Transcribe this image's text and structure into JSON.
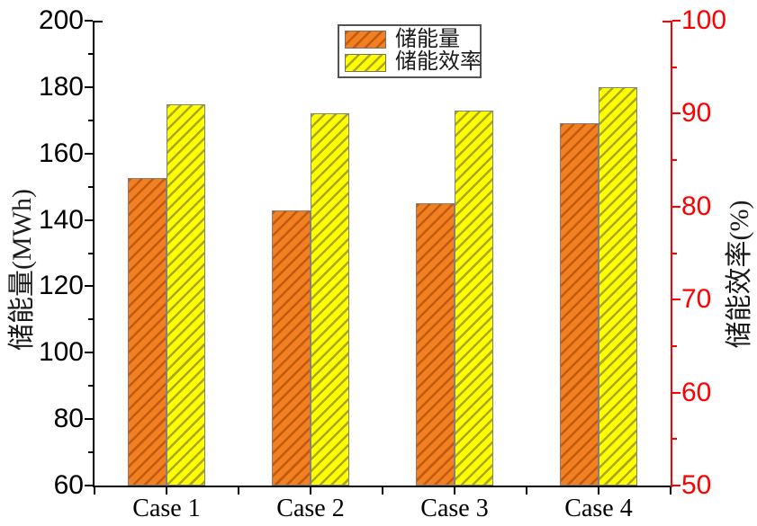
{
  "chart_data": {
    "type": "bar",
    "title": "",
    "categories": [
      "Case 1",
      "Case 2",
      "Case 3",
      "Case 4"
    ],
    "series": [
      {
        "name": "储能量",
        "axis": "left",
        "unit": "MWh",
        "fill_color": "#F28020",
        "hatch_color": "#C05A10",
        "values": [
          152.5,
          143,
          145,
          169
        ]
      },
      {
        "name": "储能效率",
        "axis": "right",
        "unit": "%",
        "fill_color": "#FFFF00",
        "hatch_color": "#A8A820",
        "values": [
          91,
          90,
          90.3,
          92.8
        ]
      }
    ],
    "left_axis": {
      "label": "储能量(MWh)",
      "min": 60,
      "max": 200,
      "major_step": 20,
      "minor_step": 10,
      "tick_labels": [
        "60",
        "80",
        "100",
        "120",
        "140",
        "160",
        "180",
        "200"
      ],
      "color": "#000000"
    },
    "right_axis": {
      "label": "储能效率(%)",
      "min": 50,
      "max": 100,
      "major_step": 10,
      "minor_step": 5,
      "tick_labels": [
        "50",
        "60",
        "70",
        "80",
        "90",
        "100"
      ],
      "color": "#FF0000",
      "title_color": "#1a1a1a"
    },
    "x_axis": {
      "color": "#000000",
      "ticks": "category centers and boundaries"
    },
    "legend": {
      "entries": [
        "储能量",
        "储能效率"
      ],
      "position": "top-center",
      "border_color": "#545454"
    },
    "grid": false,
    "bar_edge_color": "#808080",
    "hatch_pattern": "diagonal-forward",
    "background": "#FFFFFF"
  }
}
